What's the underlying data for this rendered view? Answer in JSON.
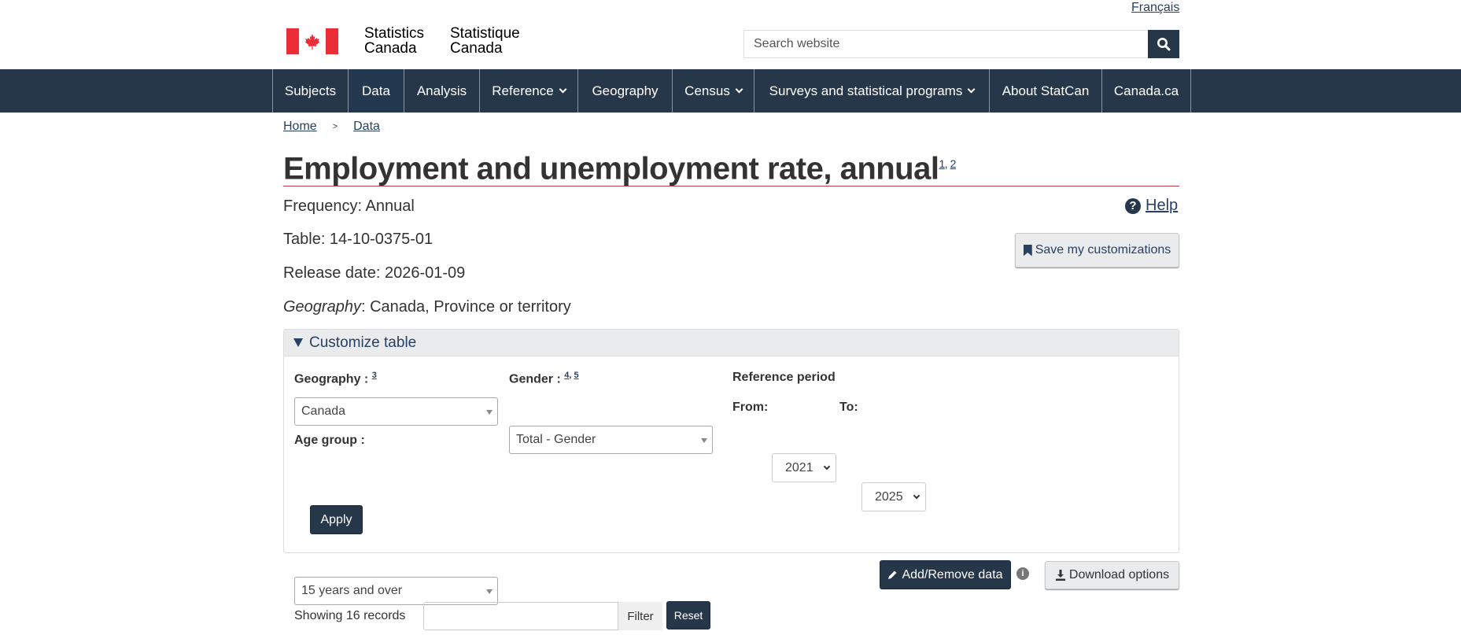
{
  "header": {
    "language_link": "Français",
    "brand_en": [
      "Statistics",
      "Canada"
    ],
    "brand_fr": [
      "Statistique",
      "Canada"
    ],
    "search_placeholder": "Search website",
    "flag_color": "#eb2d37"
  },
  "nav": {
    "items": [
      {
        "label": "Subjects",
        "dropdown": false
      },
      {
        "label": "Data",
        "dropdown": false
      },
      {
        "label": "Analysis",
        "dropdown": false
      },
      {
        "label": "Reference",
        "dropdown": true
      },
      {
        "label": "Geography",
        "dropdown": false
      },
      {
        "label": "Census",
        "dropdown": true
      },
      {
        "label": "Surveys and statistical programs",
        "dropdown": true
      },
      {
        "label": "About StatCan",
        "dropdown": false
      },
      {
        "label": "Canada.ca",
        "dropdown": false
      }
    ],
    "background": "#26374a"
  },
  "breadcrumb": {
    "items": [
      "Home",
      "Data"
    ],
    "separator": ">"
  },
  "page": {
    "title": "Employment and unemployment rate, annual",
    "footnotes": [
      "1",
      "2"
    ],
    "frequency": "Frequency: Annual",
    "table": "Table: 14-10-0375-01",
    "release_date": "Release date: 2026-01-09",
    "geography_label": "Geography",
    "geography_value": ": Canada, Province or territory",
    "help_label": "Help",
    "save_label": "Save my customizations"
  },
  "customize": {
    "header": "Customize table",
    "geography": {
      "label": "Geography :",
      "footnote": "3",
      "value": "Canada"
    },
    "gender": {
      "label": "Gender :",
      "footnotes": [
        "4",
        "5"
      ],
      "value": "Total - Gender"
    },
    "reference_period": {
      "label": "Reference period",
      "from_label": "From:",
      "from_value": "2021",
      "to_label": "To:",
      "to_value": "2025"
    },
    "age_group": {
      "label": "Age group :",
      "value": "15 years and over"
    },
    "apply_label": "Apply"
  },
  "actions": {
    "add_remove_label": "Add/Remove data",
    "info_icon": "i",
    "download_label": "Download options"
  },
  "records": {
    "showing": "Showing 16 records",
    "filter_value": "",
    "filter_label": "Filter",
    "reset_label": "Reset"
  }
}
